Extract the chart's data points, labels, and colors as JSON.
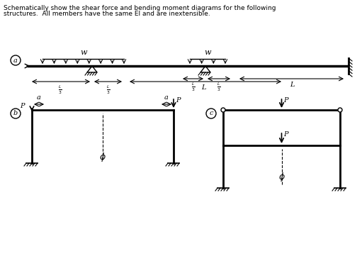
{
  "title_line1": "Schematically show the shear force and bending moment diagrams for the following",
  "title_line2": "structures.  All members have the same EI and are inextensible.",
  "bg_color": "#ffffff",
  "text_color": "#000000",
  "line_color": "#000000",
  "label_a": "a",
  "label_b": "b",
  "label_c": "c"
}
